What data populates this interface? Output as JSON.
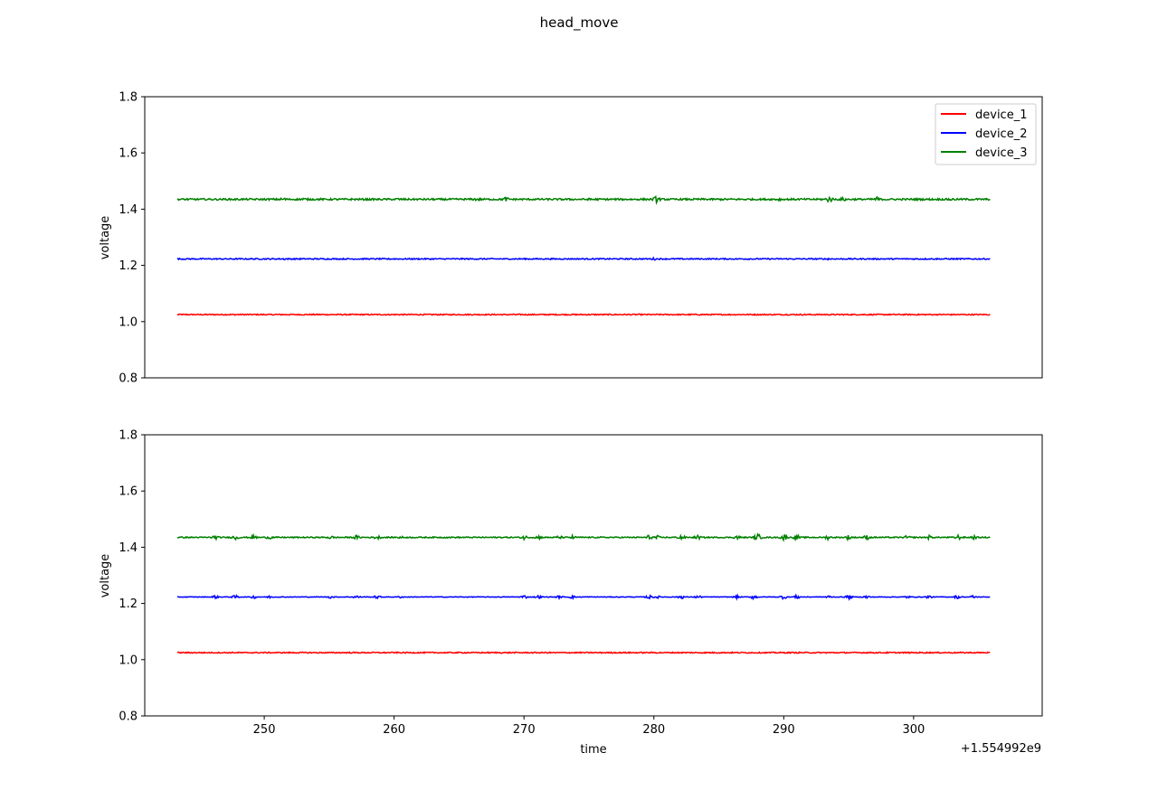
{
  "figure": {
    "title": "head_move",
    "offset_label": "+1.554992e9"
  },
  "colors": {
    "device_1": "#ff0000",
    "device_2": "#0000ff",
    "device_3": "#008000"
  },
  "chart_data": [
    {
      "type": "line",
      "title": "head_move",
      "xlabel": "",
      "ylabel": "voltage",
      "xlim": [
        240.8,
        309.9
      ],
      "ylim": [
        0.8,
        1.8
      ],
      "x_offset": "+1.554992e9",
      "xticks": [],
      "yticks": [
        "0.8",
        "1.0",
        "1.2",
        "1.4",
        "1.6",
        "1.8"
      ],
      "legend": {
        "placement": "top-right",
        "entries": [
          "device_1",
          "device_2",
          "device_3"
        ]
      },
      "grid": false,
      "series": [
        {
          "name": "device_1",
          "color": "#ff0000",
          "x_start": 243.3,
          "x_end": 305.9,
          "level": 1.025,
          "noise": 0.002,
          "bursts": []
        },
        {
          "name": "device_2",
          "color": "#0000ff",
          "x_start": 243.3,
          "x_end": 305.9,
          "level": 1.223,
          "noise": 0.002,
          "bursts": [
            [
              251.6,
              0.004
            ],
            [
              266.5,
              0.003
            ],
            [
              280.0,
              0.005
            ],
            [
              293.5,
              0.004
            ]
          ]
        },
        {
          "name": "device_3",
          "color": "#008000",
          "x_start": 243.3,
          "x_end": 305.9,
          "level": 1.435,
          "noise": 0.003,
          "bursts": [
            [
              251.5,
              0.008
            ],
            [
              253.0,
              0.006
            ],
            [
              260.3,
              0.006
            ],
            [
              266.4,
              0.007
            ],
            [
              268.6,
              0.009
            ],
            [
              275.2,
              0.007
            ],
            [
              280.2,
              0.012
            ],
            [
              289.6,
              0.006
            ],
            [
              293.5,
              0.012
            ],
            [
              294.6,
              0.008
            ],
            [
              297.2,
              0.009
            ],
            [
              302.8,
              0.006
            ]
          ]
        }
      ]
    },
    {
      "type": "line",
      "xlabel": "time",
      "ylabel": "voltage",
      "xlim": [
        240.8,
        309.9
      ],
      "ylim": [
        0.8,
        1.8
      ],
      "x_offset": "+1.554992e9",
      "xticks": [
        "250",
        "260",
        "270",
        "280",
        "290",
        "300"
      ],
      "yticks": [
        "0.8",
        "1.0",
        "1.2",
        "1.4",
        "1.6",
        "1.8"
      ],
      "grid": false,
      "series": [
        {
          "name": "device_1",
          "color": "#ff0000",
          "x_start": 243.3,
          "x_end": 305.9,
          "level": 1.025,
          "noise": 0.002,
          "bursts": []
        },
        {
          "name": "device_2",
          "color": "#0000ff",
          "x_start": 243.3,
          "x_end": 305.9,
          "level": 1.223,
          "noise": 0.001,
          "bursts": [
            [
              246.2,
              0.006
            ],
            [
              247.8,
              0.007
            ],
            [
              249.2,
              0.006
            ],
            [
              250.4,
              0.005
            ],
            [
              255.1,
              0.005
            ],
            [
              257.1,
              0.006
            ],
            [
              258.7,
              0.006
            ],
            [
              260.5,
              0.004
            ],
            [
              270.0,
              0.007
            ],
            [
              271.1,
              0.006
            ],
            [
              272.7,
              0.005
            ],
            [
              273.7,
              0.006
            ],
            [
              279.6,
              0.007
            ],
            [
              280.2,
              0.006
            ],
            [
              282.1,
              0.007
            ],
            [
              283.4,
              0.006
            ],
            [
              286.4,
              0.006
            ],
            [
              287.7,
              0.008
            ],
            [
              290.0,
              0.008
            ],
            [
              291.0,
              0.007
            ],
            [
              293.4,
              0.006
            ],
            [
              295.0,
              0.007
            ],
            [
              296.4,
              0.006
            ],
            [
              299.5,
              0.005
            ],
            [
              301.2,
              0.006
            ],
            [
              303.4,
              0.007
            ],
            [
              304.6,
              0.006
            ]
          ]
        },
        {
          "name": "device_3",
          "color": "#008000",
          "x_start": 243.3,
          "x_end": 305.9,
          "level": 1.435,
          "noise": 0.002,
          "bursts": [
            [
              246.2,
              0.008
            ],
            [
              247.8,
              0.009
            ],
            [
              249.2,
              0.008
            ],
            [
              250.4,
              0.007
            ],
            [
              255.1,
              0.007
            ],
            [
              257.1,
              0.008
            ],
            [
              258.7,
              0.008
            ],
            [
              260.5,
              0.005
            ],
            [
              270.0,
              0.009
            ],
            [
              271.1,
              0.008
            ],
            [
              272.7,
              0.007
            ],
            [
              273.7,
              0.008
            ],
            [
              279.6,
              0.009
            ],
            [
              280.2,
              0.008
            ],
            [
              282.1,
              0.01
            ],
            [
              283.4,
              0.008
            ],
            [
              286.4,
              0.008
            ],
            [
              288.0,
              0.013
            ],
            [
              290.0,
              0.013
            ],
            [
              291.0,
              0.01
            ],
            [
              293.4,
              0.008
            ],
            [
              295.0,
              0.01
            ],
            [
              296.4,
              0.009
            ],
            [
              299.5,
              0.007
            ],
            [
              301.2,
              0.008
            ],
            [
              303.4,
              0.01
            ],
            [
              304.6,
              0.008
            ]
          ]
        }
      ]
    }
  ]
}
